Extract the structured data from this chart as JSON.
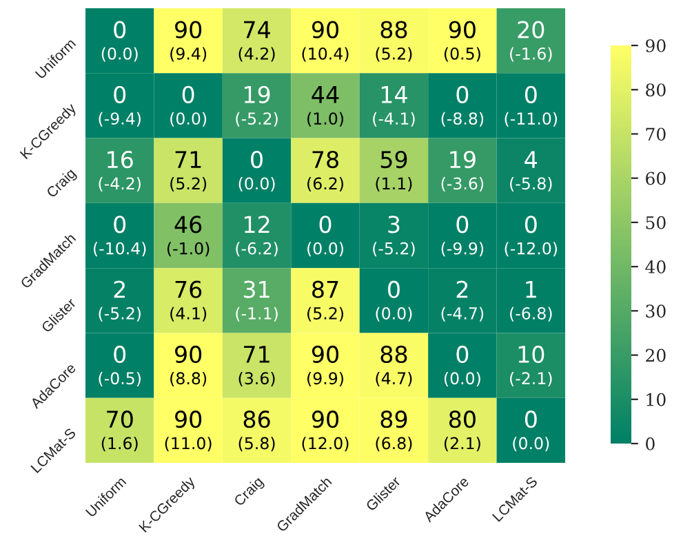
{
  "chart_data": {
    "type": "heatmap",
    "categories": [
      "Uniform",
      "K-CGreedy",
      "Craig",
      "GradMatch",
      "Glister",
      "AdaCore",
      "LCMat-S"
    ],
    "y_categories": [
      "Uniform",
      "K-CGreedy",
      "Craig",
      "GradMatch",
      "Glister",
      "AdaCore",
      "LCMat-S"
    ],
    "cells": [
      [
        0,
        90,
        74,
        90,
        88,
        90,
        20
      ],
      [
        0,
        0,
        19,
        44,
        14,
        0,
        0
      ],
      [
        16,
        71,
        0,
        78,
        59,
        19,
        4
      ],
      [
        0,
        46,
        12,
        0,
        3,
        0,
        0
      ],
      [
        2,
        76,
        31,
        87,
        0,
        2,
        1
      ],
      [
        0,
        90,
        71,
        90,
        88,
        0,
        10
      ],
      [
        70,
        90,
        86,
        90,
        89,
        80,
        0
      ]
    ],
    "cell_labels": [
      [
        "0\n(0.0)",
        "90\n(9.4)",
        "74\n(4.2)",
        "90\n(10.4)",
        "88\n(5.2)",
        "90\n(0.5)",
        "20\n(-1.6)"
      ],
      [
        "0\n(-9.4)",
        "0\n(0.0)",
        "19\n(-5.2)",
        "44\n(1.0)",
        "14\n(-4.1)",
        "0\n(-8.8)",
        "0\n(-11.0)"
      ],
      [
        "16\n(-4.2)",
        "71\n(5.2)",
        "0\n(0.0)",
        "78\n(6.2)",
        "59\n(1.1)",
        "19\n(-3.6)",
        "4\n(-5.8)"
      ],
      [
        "0\n(-10.4)",
        "46\n(-1.0)",
        "12\n(-6.2)",
        "0\n(0.0)",
        "3\n(-5.2)",
        "0\n(-9.9)",
        "0\n(-12.0)"
      ],
      [
        "2\n(-5.2)",
        "76\n(4.1)",
        "31\n(-1.1)",
        "87\n(5.2)",
        "0\n(0.0)",
        "2\n(-4.7)",
        "1\n(-6.8)"
      ],
      [
        "0\n(-0.5)",
        "90\n(8.8)",
        "71\n(3.6)",
        "90\n(9.9)",
        "88\n(4.7)",
        "0\n(0.0)",
        "10\n(-2.1)"
      ],
      [
        "70\n(1.6)",
        "90\n(11.0)",
        "86\n(5.8)",
        "90\n(12.0)",
        "89\n(6.8)",
        "80\n(2.1)",
        "0\n(0.0)"
      ]
    ],
    "clim": [
      0,
      90
    ],
    "cticks": [
      0,
      10,
      20,
      30,
      40,
      50,
      60,
      70,
      80,
      90
    ]
  }
}
